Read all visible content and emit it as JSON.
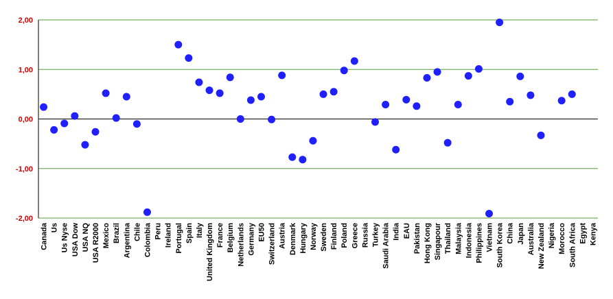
{
  "chart_data": {
    "type": "scatter",
    "categories": [
      "Canada",
      "Us",
      "Us Nyse",
      "USA Dow",
      "USA NQ",
      "USA R2000",
      "Mexico",
      "Brazil",
      "Argentina",
      "Chile",
      "Colombia",
      "Peru",
      "Ireland",
      "Portugal",
      "Spain",
      "Italy",
      "United Kingdom",
      "France",
      "Belgium",
      "Netherlands",
      "Germany",
      "EU50",
      "Switzerland",
      "Austria",
      "Denmark",
      "Hungary",
      "Norway",
      "Sweden",
      "Finland",
      "Poland",
      "Greece",
      "Russia",
      "Turkey",
      "Saudi Arabia",
      "India",
      "EAU",
      "Pakistan",
      "Hong Kong",
      "Singapour",
      "Thailand",
      "Malaysia",
      "Indonesia",
      "Philippines",
      "Vietnam",
      "South Korea",
      "China",
      "Japan",
      "Australia",
      "New Zealand",
      "Nigeria",
      "Morocco",
      "South Africa",
      "Egypt",
      "Kenya"
    ],
    "values": [
      0.24,
      -0.22,
      -0.09,
      0.06,
      -0.52,
      -0.26,
      0.52,
      0.02,
      0.45,
      -0.1,
      -1.88,
      null,
      null,
      1.5,
      1.23,
      0.74,
      0.58,
      0.52,
      0.84,
      0.0,
      0.38,
      0.45,
      -0.01,
      0.88,
      -0.77,
      -0.82,
      -0.44,
      0.5,
      0.55,
      0.98,
      1.17,
      null,
      -0.06,
      0.29,
      -0.62,
      0.39,
      0.26,
      0.83,
      0.95,
      -0.48,
      0.29,
      0.87,
      1.01,
      -1.91,
      1.95,
      0.35,
      0.86,
      0.48,
      -0.33,
      null,
      0.37,
      0.5,
      null,
      null
    ],
    "color": "#2020ff",
    "ylim": [
      -2,
      2
    ],
    "yticks": [
      {
        "value": -2,
        "label": "-2,00"
      },
      {
        "value": -1,
        "label": "-1,00"
      },
      {
        "value": 0,
        "label": "0,00"
      },
      {
        "value": 1,
        "label": "1,00"
      },
      {
        "value": 2,
        "label": "2,00"
      }
    ],
    "grid": true,
    "grid_color": "#5a9a3a",
    "tick_label_color": "#cc0000"
  }
}
